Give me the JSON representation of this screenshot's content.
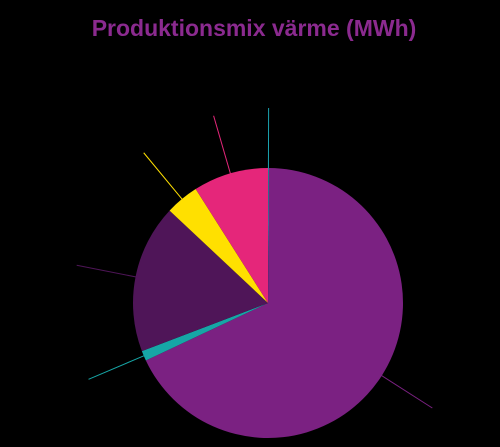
{
  "chart_data": {
    "type": "pie",
    "title": "Produktionsmix värme (MWh)",
    "values": [
      0.1,
      67.9,
      1.2,
      17.8,
      4,
      9
    ],
    "colors": [
      "#1aa3b0",
      "#7b2182",
      "#16a6a6",
      "#4f1558",
      "#ffe000",
      "#e5267a"
    ]
  }
}
